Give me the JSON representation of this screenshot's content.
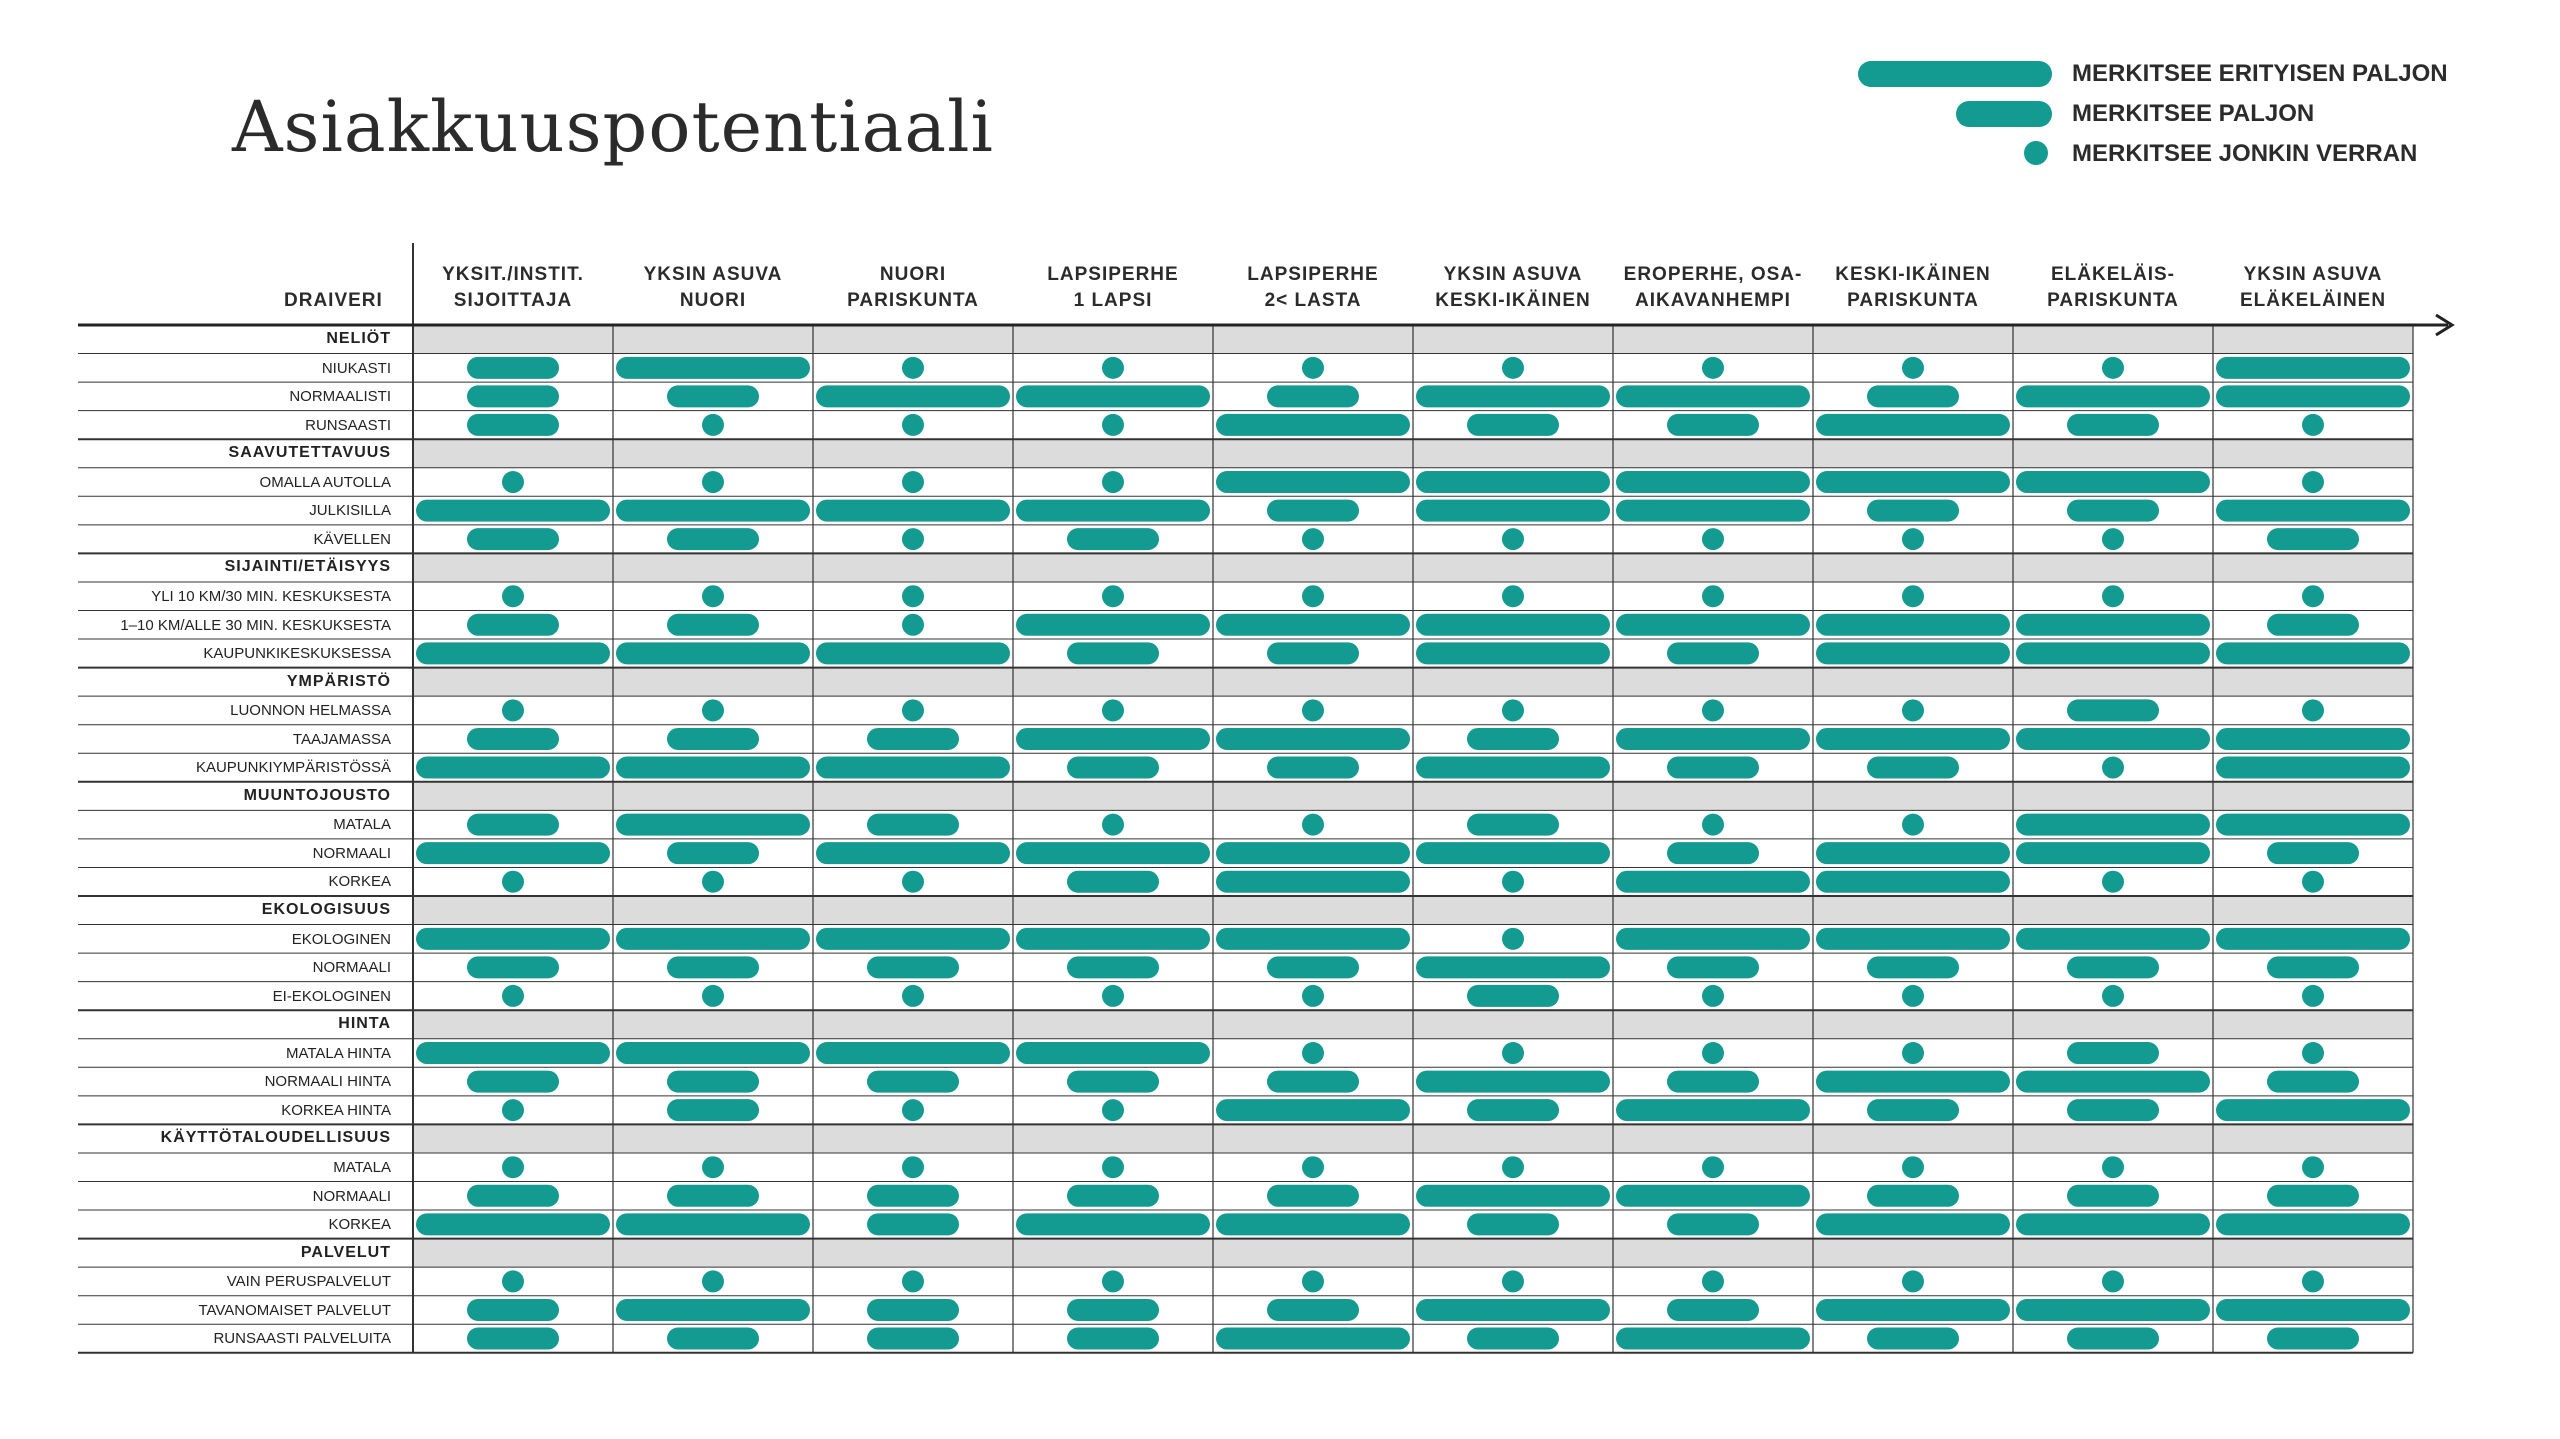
{
  "title": "Asiakkuuspotentiaali",
  "legend": [
    {
      "label": "MERKITSEE ERITYISEN PALJON",
      "level": 3
    },
    {
      "label": "MERKITSEE PALJON",
      "level": 2
    },
    {
      "label": "MERKITSEE JONKIN VERRAN",
      "level": 1
    }
  ],
  "accent_color": "#139b91",
  "row_header": "DRAIVERI",
  "columns": [
    [
      "YKSIT./INSTIT.",
      "SIJOITTAJA"
    ],
    [
      "YKSIN ASUVA",
      "NUORI"
    ],
    [
      "NUORI",
      "PARISKUNTA"
    ],
    [
      "LAPSIPERHE",
      "1 LAPSI"
    ],
    [
      "LAPSIPERHE",
      "2< LASTA"
    ],
    [
      "YKSIN ASUVA",
      "KESKI-IKÄINEN"
    ],
    [
      "EROPERHE, OSA-",
      "AIKAVANHEMPI"
    ],
    [
      "KESKI-IKÄINEN",
      "PARISKUNTA"
    ],
    [
      "ELÄKELÄIS-",
      "PARISKUNTA"
    ],
    [
      "YKSIN ASUVA",
      "ELÄKELÄINEN"
    ]
  ],
  "categories": [
    {
      "name": "NELIÖT",
      "rows": [
        {
          "label": "NIUKASTI",
          "values": [
            2,
            3,
            1,
            1,
            1,
            1,
            1,
            1,
            1,
            3
          ]
        },
        {
          "label": "NORMAALISTI",
          "values": [
            2,
            2,
            3,
            3,
            2,
            3,
            3,
            2,
            3,
            3
          ]
        },
        {
          "label": "RUNSAASTI",
          "values": [
            2,
            1,
            1,
            1,
            3,
            2,
            2,
            3,
            2,
            1
          ]
        }
      ]
    },
    {
      "name": "SAAVUTETTAVUUS",
      "rows": [
        {
          "label": "OMALLA AUTOLLA",
          "values": [
            1,
            1,
            1,
            1,
            3,
            3,
            3,
            3,
            3,
            1
          ]
        },
        {
          "label": "JULKISILLA",
          "values": [
            3,
            3,
            3,
            3,
            2,
            3,
            3,
            2,
            2,
            3
          ]
        },
        {
          "label": "KÄVELLEN",
          "values": [
            2,
            2,
            1,
            2,
            1,
            1,
            1,
            1,
            1,
            2
          ]
        }
      ]
    },
    {
      "name": "SIJAINTI/ETÄISYYS",
      "rows": [
        {
          "label": "YLI 10 KM/30 MIN. KESKUKSESTA",
          "values": [
            1,
            1,
            1,
            1,
            1,
            1,
            1,
            1,
            1,
            1
          ]
        },
        {
          "label": "1–10 KM/ALLE 30 MIN. KESKUKSESTA",
          "values": [
            2,
            2,
            1,
            3,
            3,
            3,
            3,
            3,
            3,
            2
          ]
        },
        {
          "label": "KAUPUNKIKESKUKSESSA",
          "values": [
            3,
            3,
            3,
            2,
            2,
            3,
            2,
            3,
            3,
            3
          ]
        }
      ]
    },
    {
      "name": "YMPÄRISTÖ",
      "rows": [
        {
          "label": "LUONNON HELMASSA",
          "values": [
            1,
            1,
            1,
            1,
            1,
            1,
            1,
            1,
            2,
            1
          ]
        },
        {
          "label": "TAAJAMASSA",
          "values": [
            2,
            2,
            2,
            3,
            3,
            2,
            3,
            3,
            3,
            3
          ]
        },
        {
          "label": "KAUPUNKIYMPÄRISTÖSSÄ",
          "values": [
            3,
            3,
            3,
            2,
            2,
            3,
            2,
            2,
            1,
            3
          ]
        }
      ]
    },
    {
      "name": "MUUNTOJOUSTO",
      "rows": [
        {
          "label": "MATALA",
          "values": [
            2,
            3,
            2,
            1,
            1,
            2,
            1,
            1,
            3,
            3
          ]
        },
        {
          "label": "NORMAALI",
          "values": [
            3,
            2,
            3,
            3,
            3,
            3,
            2,
            3,
            3,
            2
          ]
        },
        {
          "label": "KORKEA",
          "values": [
            1,
            1,
            1,
            2,
            3,
            1,
            3,
            3,
            1,
            1
          ]
        }
      ]
    },
    {
      "name": "EKOLOGISUUS",
      "rows": [
        {
          "label": "EKOLOGINEN",
          "values": [
            3,
            3,
            3,
            3,
            3,
            1,
            3,
            3,
            3,
            3
          ]
        },
        {
          "label": "NORMAALI",
          "values": [
            2,
            2,
            2,
            2,
            2,
            3,
            2,
            2,
            2,
            2
          ]
        },
        {
          "label": "EI-EKOLOGINEN",
          "values": [
            1,
            1,
            1,
            1,
            1,
            2,
            1,
            1,
            1,
            1
          ]
        }
      ]
    },
    {
      "name": "HINTA",
      "rows": [
        {
          "label": "MATALA HINTA",
          "values": [
            3,
            3,
            3,
            3,
            1,
            1,
            1,
            1,
            2,
            1
          ]
        },
        {
          "label": "NORMAALI HINTA",
          "values": [
            2,
            2,
            2,
            2,
            2,
            3,
            2,
            3,
            3,
            2
          ]
        },
        {
          "label": "KORKEA HINTA",
          "values": [
            1,
            2,
            1,
            1,
            3,
            2,
            3,
            2,
            2,
            3
          ]
        }
      ]
    },
    {
      "name": "KÄYTTÖTALOUDELLISUUS",
      "rows": [
        {
          "label": "MATALA",
          "values": [
            1,
            1,
            1,
            1,
            1,
            1,
            1,
            1,
            1,
            1
          ]
        },
        {
          "label": "NORMAALI",
          "values": [
            2,
            2,
            2,
            2,
            2,
            3,
            3,
            2,
            2,
            2
          ]
        },
        {
          "label": "KORKEA",
          "values": [
            3,
            3,
            2,
            3,
            3,
            2,
            2,
            3,
            3,
            3
          ]
        }
      ]
    },
    {
      "name": "PALVELUT",
      "rows": [
        {
          "label": "VAIN PERUSPALVELUT",
          "values": [
            1,
            1,
            1,
            1,
            1,
            1,
            1,
            1,
            1,
            1
          ]
        },
        {
          "label": "TAVANOMAISET PALVELUT",
          "values": [
            2,
            3,
            2,
            2,
            2,
            3,
            2,
            3,
            3,
            3
          ]
        },
        {
          "label": "RUNSAASTI PALVELUITA",
          "values": [
            2,
            2,
            2,
            2,
            3,
            2,
            3,
            2,
            2,
            2
          ]
        }
      ]
    }
  ]
}
